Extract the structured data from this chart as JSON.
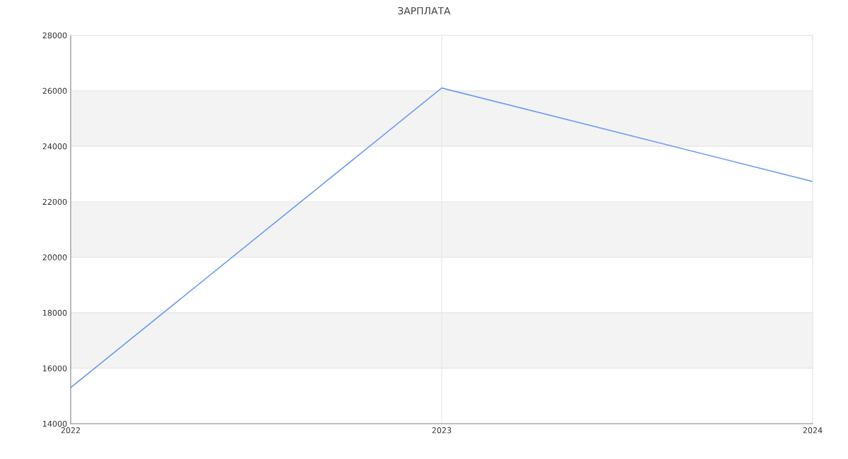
{
  "chart_data": {
    "type": "line",
    "title": "ЗАРПЛАТА",
    "x": [
      2022,
      2023,
      2024
    ],
    "series": [
      {
        "color": "#6e9cf5",
        "values": [
          15300,
          26100,
          22730
        ]
      }
    ],
    "xlim": [
      2022,
      2024
    ],
    "xticks": [
      2022,
      2023,
      2024
    ],
    "ylim": [
      14000,
      28000
    ],
    "yticks": [
      14000,
      16000,
      18000,
      20000,
      22000,
      24000,
      26000,
      28000
    ],
    "grid": true
  }
}
